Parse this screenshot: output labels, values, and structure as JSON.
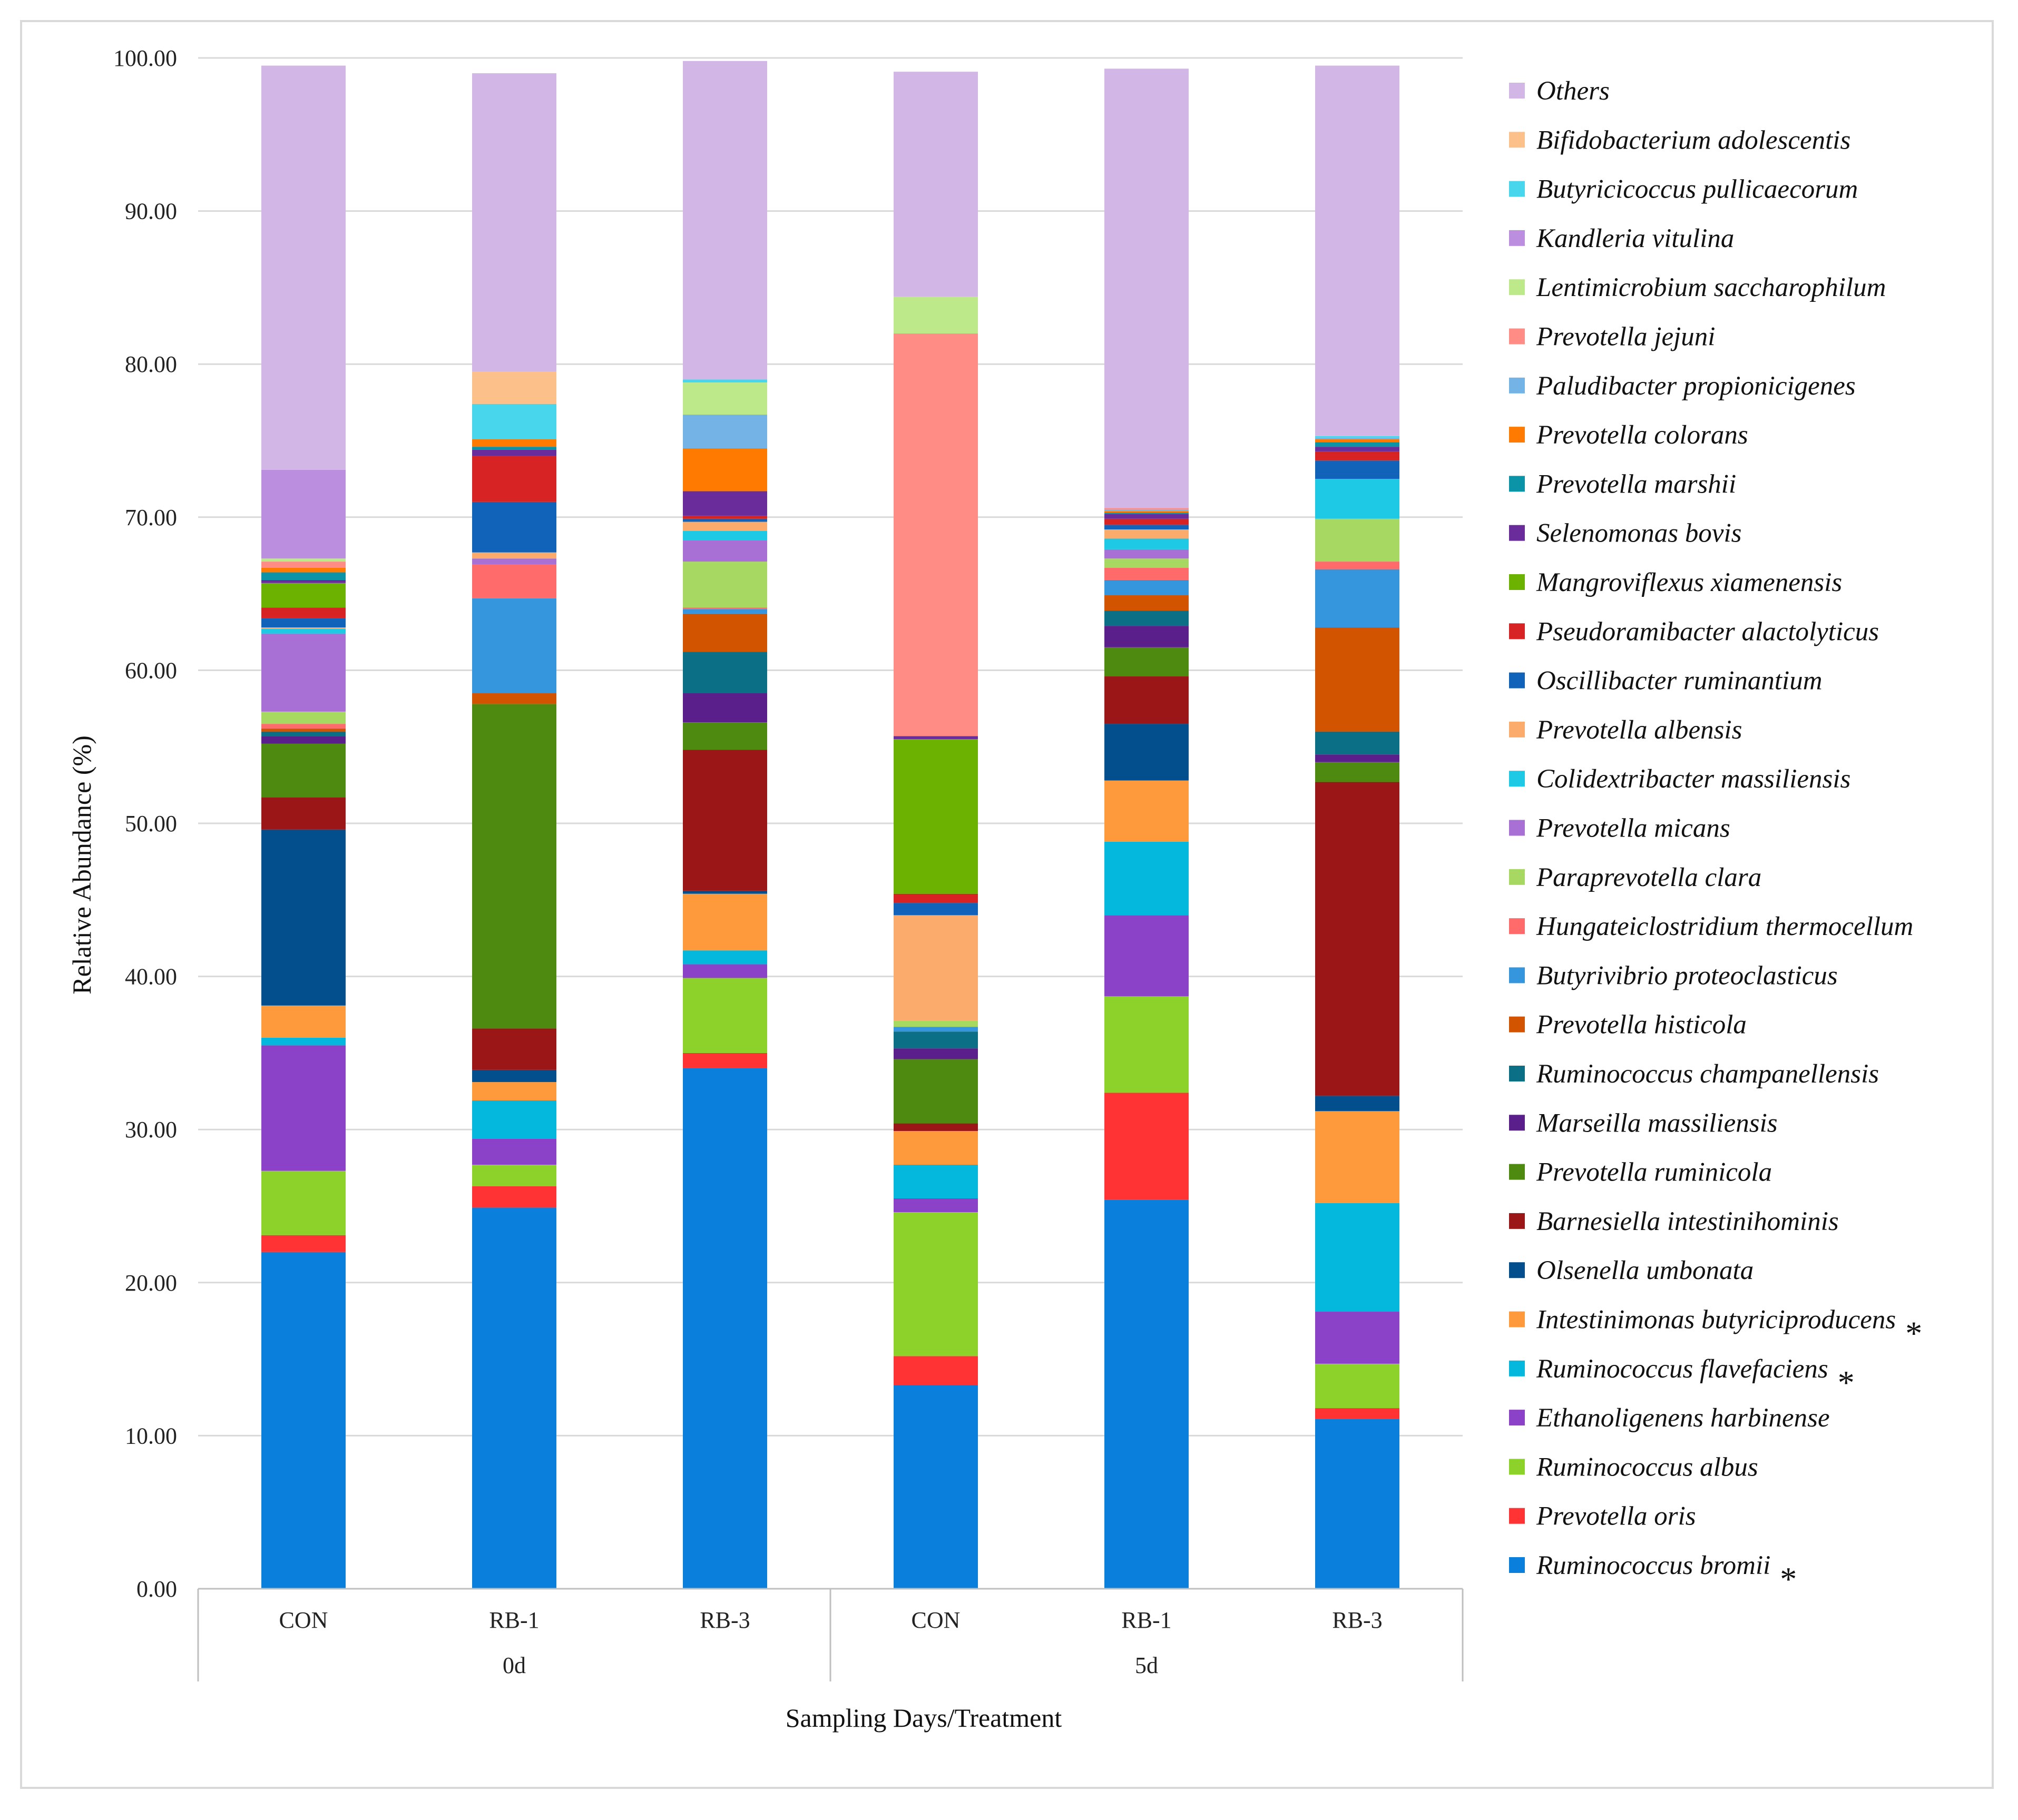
{
  "chart_data": {
    "type": "bar",
    "stacked": true,
    "title": "",
    "ylabel": "Relative Abundance (%)",
    "xlabel": "Sampling Days/Treatment",
    "ylim": [
      0,
      100
    ],
    "yticks": [
      "0.00",
      "10.00",
      "20.00",
      "30.00",
      "40.00",
      "50.00",
      "60.00",
      "70.00",
      "80.00",
      "90.00",
      "100.00"
    ],
    "grid": true,
    "legend_position": "right",
    "categories": [
      "CON",
      "RB-1",
      "RB-3",
      "CON",
      "RB-1",
      "RB-3"
    ],
    "groups": [
      {
        "label": "0d",
        "members": [
          0,
          1,
          2
        ]
      },
      {
        "label": "5d",
        "members": [
          3,
          4,
          5
        ]
      }
    ],
    "series": [
      {
        "name": "Ruminococcus bromii",
        "color": "#0a7fdb",
        "marked": true,
        "values": [
          22.0,
          24.9,
          34.0,
          13.3,
          25.4,
          11.1
        ]
      },
      {
        "name": "Prevotella oris",
        "color": "#ff3333",
        "marked": false,
        "values": [
          1.1,
          1.4,
          1.0,
          1.9,
          7.0,
          0.7
        ]
      },
      {
        "name": "Ruminococcus albus",
        "color": "#8cd22a",
        "marked": false,
        "values": [
          4.2,
          1.4,
          4.9,
          9.4,
          6.3,
          2.9
        ]
      },
      {
        "name": "Ethanoligenens harbinense",
        "color": "#8b42c8",
        "marked": false,
        "values": [
          8.2,
          1.7,
          0.9,
          0.9,
          5.3,
          3.4
        ]
      },
      {
        "name": "Ruminococcus flavefaciens",
        "color": "#03b8dc",
        "marked": true,
        "values": [
          0.5,
          2.5,
          0.9,
          2.2,
          4.8,
          7.1
        ]
      },
      {
        "name": "Intestinimonas butyriciproducens",
        "color": "#ff9a3c",
        "marked": true,
        "values": [
          2.1,
          1.2,
          3.7,
          2.2,
          4.0,
          6.0
        ]
      },
      {
        "name": "Olsenella umbonata",
        "color": "#034e8c",
        "marked": false,
        "values": [
          11.5,
          0.8,
          0.2,
          0.0,
          3.7,
          1.0
        ]
      },
      {
        "name": "Barnesiella intestinihominis",
        "color": "#9b1717",
        "marked": false,
        "values": [
          2.1,
          2.7,
          9.2,
          0.5,
          3.1,
          20.5
        ]
      },
      {
        "name": "Prevotella ruminicola",
        "color": "#4d8a0f",
        "marked": false,
        "values": [
          3.5,
          21.2,
          1.8,
          4.2,
          1.9,
          1.3
        ]
      },
      {
        "name": "Marseilla massiliensis",
        "color": "#5a1f8a",
        "marked": false,
        "values": [
          0.5,
          0.0,
          1.9,
          0.7,
          1.4,
          0.5
        ]
      },
      {
        "name": "Ruminococcus champanellensis",
        "color": "#0b6f86",
        "marked": false,
        "values": [
          0.3,
          0.0,
          2.7,
          1.1,
          1.0,
          1.5
        ]
      },
      {
        "name": "Prevotella histicola",
        "color": "#d35400",
        "marked": false,
        "values": [
          0.2,
          0.7,
          2.5,
          0.0,
          1.0,
          6.8
        ]
      },
      {
        "name": "Butyrivibrio proteoclasticus",
        "color": "#3595dd",
        "marked": false,
        "values": [
          0.0,
          6.2,
          0.3,
          0.3,
          1.0,
          3.8
        ]
      },
      {
        "name": "Hungateiclostridium thermocellum",
        "color": "#ff6b6b",
        "marked": false,
        "values": [
          0.3,
          2.2,
          0.1,
          0.0,
          0.8,
          0.5
        ]
      },
      {
        "name": "Paraprevotella clara",
        "color": "#a7d862",
        "marked": false,
        "values": [
          0.8,
          0.0,
          3.0,
          0.4,
          0.6,
          2.8
        ]
      },
      {
        "name": "Prevotella micans",
        "color": "#a86fd4",
        "marked": false,
        "values": [
          5.1,
          0.4,
          1.4,
          0.0,
          0.6,
          0.0
        ]
      },
      {
        "name": "Colidextribacter massiliensis",
        "color": "#1ec9e6",
        "marked": false,
        "values": [
          0.3,
          0.0,
          0.6,
          0.0,
          0.7,
          2.6
        ]
      },
      {
        "name": "Prevotella albensis",
        "color": "#fbab6c",
        "marked": false,
        "values": [
          0.1,
          0.4,
          0.6,
          6.9,
          0.6,
          0.0
        ]
      },
      {
        "name": "Oscillibacter ruminantium",
        "color": "#1063b8",
        "marked": false,
        "values": [
          0.6,
          3.3,
          0.2,
          0.8,
          0.3,
          1.2
        ]
      },
      {
        "name": "Pseudoramibacter alactolyticus",
        "color": "#d72323",
        "marked": false,
        "values": [
          0.7,
          3.0,
          0.2,
          0.6,
          0.4,
          0.6
        ]
      },
      {
        "name": "Mangroviflexus xiamenensis",
        "color": "#6bb300",
        "marked": false,
        "values": [
          1.6,
          0.0,
          0.0,
          10.1,
          0.0,
          0.0
        ]
      },
      {
        "name": "Selenomonas bovis",
        "color": "#6a2c9a",
        "marked": false,
        "values": [
          0.2,
          0.4,
          1.6,
          0.2,
          0.3,
          0.3
        ]
      },
      {
        "name": "Prevotella marshii",
        "color": "#0b93a8",
        "marked": false,
        "values": [
          0.5,
          0.2,
          0.0,
          0.0,
          0.1,
          0.3
        ]
      },
      {
        "name": "Prevotella colorans",
        "color": "#ff7a00",
        "marked": false,
        "values": [
          0.3,
          0.5,
          2.8,
          0.0,
          0.1,
          0.2
        ]
      },
      {
        "name": "Paludibacter propionicigenes",
        "color": "#74b3e6",
        "marked": false,
        "values": [
          0.0,
          0.0,
          2.2,
          0.0,
          0.1,
          0.1
        ]
      },
      {
        "name": "Prevotella jejuni",
        "color": "#ff8c85",
        "marked": false,
        "values": [
          0.4,
          0.0,
          0.0,
          26.3,
          0.1,
          0.0
        ]
      },
      {
        "name": "Lentimicrobium saccharophilum",
        "color": "#bde98a",
        "marked": false,
        "values": [
          0.2,
          0.0,
          2.1,
          2.4,
          0.0,
          0.0
        ]
      },
      {
        "name": "Kandleria vitulina",
        "color": "#bb8edf",
        "marked": false,
        "values": [
          5.8,
          0.0,
          0.0,
          0.0,
          0.0,
          0.0
        ]
      },
      {
        "name": "Butyricicoccus pullicaecorum",
        "color": "#47d6ec",
        "marked": false,
        "values": [
          0.0,
          2.3,
          0.2,
          0.0,
          0.0,
          0.1
        ]
      },
      {
        "name": "Bifidobacterium adolescentis",
        "color": "#fcc08a",
        "marked": false,
        "values": [
          0.0,
          2.1,
          0.0,
          0.0,
          0.0,
          0.0
        ]
      },
      {
        "name": "Others",
        "color": "#d2b6e6",
        "marked": false,
        "values": [
          26.4,
          19.5,
          20.8,
          14.7,
          28.7,
          24.2
        ]
      }
    ]
  }
}
